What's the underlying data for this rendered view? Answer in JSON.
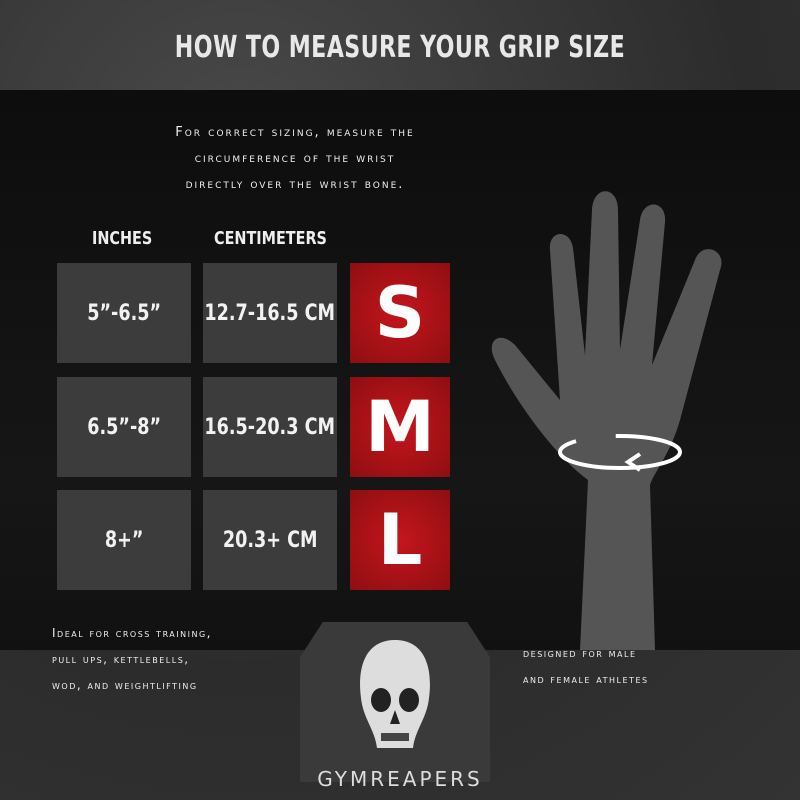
{
  "title": "HOW TO MEASURE YOUR GRIP SIZE",
  "instructions": [
    "For correct sizing, measure the",
    "circumference of the wrist",
    "directly over the wrist bone."
  ],
  "headers": {
    "inches": "INCHES",
    "centimeters": "CENTIMETERS"
  },
  "rows": [
    {
      "inches": "5”-6.5”",
      "cm": "12.7-16.5 CM",
      "size": "S"
    },
    {
      "inches": "6.5”-8”",
      "cm": "16.5-20.3 CM",
      "size": "M"
    },
    {
      "inches": "8+”",
      "cm": "20.3+ CM",
      "size": "L"
    }
  ],
  "uses": [
    "Ideal for cross training,",
    "pull ups, kettlebells,",
    "wod, and weightlifting"
  ],
  "designed": [
    "designed for male",
    "and female athletes"
  ],
  "brand": "GYMREAPERS",
  "colors": {
    "accent": "#c4161c",
    "cell": "#3c3c3c"
  }
}
